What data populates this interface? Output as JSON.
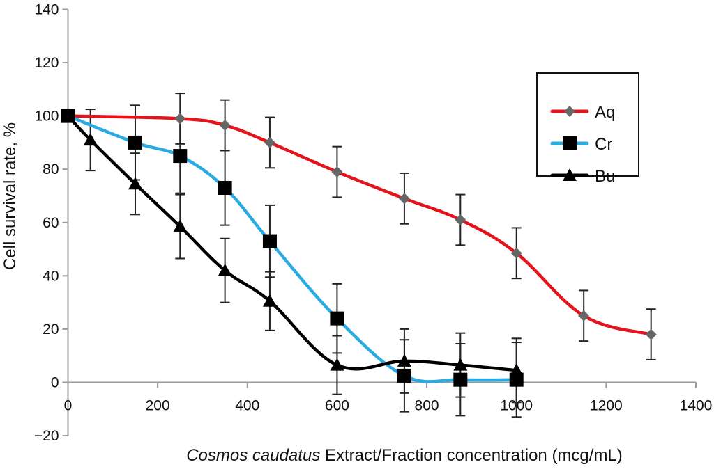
{
  "chart_data": {
    "type": "line",
    "title": "",
    "xlabel_italic": "Cosmos caudatus",
    "xlabel_rest": " Extract/Fraction concentration (mcg/mL)",
    "xlabel": "Cosmos caudatus Extract/Fraction concentration (mcg/mL)",
    "ylabel": "Cell survival rate, %",
    "xlim": [
      0,
      1400
    ],
    "ylim": [
      -20,
      140
    ],
    "xticks": [
      0,
      200,
      400,
      600,
      800,
      1000,
      1200,
      1400
    ],
    "yticks": [
      -20,
      0,
      20,
      40,
      60,
      80,
      100,
      120,
      140
    ],
    "xtick_labels": [
      "0",
      "200",
      "400",
      "600",
      "800",
      "1000",
      "1200",
      "1400"
    ],
    "ytick_labels": [
      "−20",
      "0",
      "20",
      "40",
      "60",
      "80",
      "100",
      "120",
      "140"
    ],
    "grid": false,
    "legend_position": "top-right",
    "series": [
      {
        "name": "Aq",
        "color": "#e3141b",
        "marker": "diamond",
        "marker_color": "#666666",
        "x": [
          0,
          250,
          350,
          450,
          600,
          750,
          875,
          1000,
          1150,
          1300
        ],
        "values": [
          100,
          99,
          96.5,
          90,
          79,
          69,
          61,
          48.5,
          25,
          18
        ],
        "errors": [
          0,
          9.5,
          9.5,
          9.5,
          9.5,
          9.5,
          9.5,
          9.5,
          9.5,
          9.5
        ]
      },
      {
        "name": "Cr",
        "color": "#29abe2",
        "marker": "square",
        "marker_color": "#000000",
        "x": [
          0,
          150,
          250,
          350,
          450,
          600,
          750,
          875,
          1000
        ],
        "values": [
          100,
          90,
          85,
          73,
          53,
          24,
          2.5,
          1,
          1
        ],
        "errors": [
          0,
          14,
          14,
          14,
          13.5,
          13,
          13.5,
          13.5,
          14
        ]
      },
      {
        "name": "Bu",
        "color": "#000000",
        "marker": "triangle",
        "marker_color": "#000000",
        "x": [
          0,
          50,
          150,
          250,
          350,
          450,
          600,
          750,
          875,
          1000
        ],
        "values": [
          100,
          91,
          74.5,
          58.5,
          42,
          30.5,
          6.5,
          8,
          6.5,
          4.5
        ],
        "errors": [
          0,
          11.5,
          11.5,
          12,
          12,
          11,
          11,
          12,
          12,
          12
        ]
      }
    ]
  }
}
